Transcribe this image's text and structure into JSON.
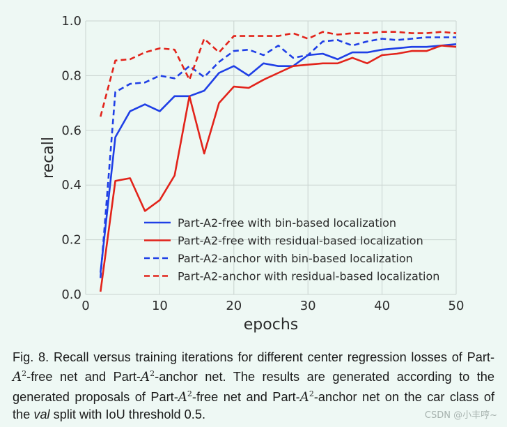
{
  "chart_data": {
    "type": "line",
    "xlabel": "epochs",
    "ylabel": "recall",
    "xlim": [
      0,
      50
    ],
    "ylim": [
      0.0,
      1.0
    ],
    "xticks": [
      0,
      10,
      20,
      30,
      40,
      50
    ],
    "yticks": [
      0.0,
      0.2,
      0.4,
      0.6,
      0.8,
      1.0
    ],
    "grid": true,
    "legend_position": "lower-right",
    "x": [
      2,
      4,
      6,
      8,
      10,
      12,
      14,
      16,
      18,
      20,
      22,
      24,
      26,
      28,
      30,
      32,
      34,
      36,
      38,
      40,
      42,
      44,
      46,
      48,
      50
    ],
    "series": [
      {
        "name": "Part-A2-free with bin-based localization",
        "color": "#1f3fe6",
        "style": "solid",
        "values": [
          0.08,
          0.575,
          0.67,
          0.695,
          0.67,
          0.725,
          0.725,
          0.745,
          0.81,
          0.835,
          0.8,
          0.845,
          0.835,
          0.835,
          0.875,
          0.88,
          0.86,
          0.885,
          0.885,
          0.895,
          0.9,
          0.905,
          0.905,
          0.91,
          0.915
        ]
      },
      {
        "name": "Part-A2-free with residual-based localization",
        "color": "#e2231a",
        "style": "solid",
        "values": [
          0.01,
          0.415,
          0.425,
          0.305,
          0.345,
          0.435,
          0.725,
          0.515,
          0.7,
          0.76,
          0.755,
          0.785,
          0.81,
          0.835,
          0.84,
          0.845,
          0.845,
          0.865,
          0.845,
          0.875,
          0.88,
          0.89,
          0.89,
          0.91,
          0.905
        ]
      },
      {
        "name": "Part-A2-anchor with bin-based localization",
        "color": "#1f3fe6",
        "style": "dashed",
        "values": [
          0.06,
          0.74,
          0.77,
          0.775,
          0.8,
          0.79,
          0.835,
          0.795,
          0.85,
          0.89,
          0.895,
          0.875,
          0.91,
          0.865,
          0.875,
          0.925,
          0.93,
          0.91,
          0.925,
          0.935,
          0.93,
          0.935,
          0.94,
          0.94,
          0.94
        ]
      },
      {
        "name": "Part-A2-anchor with residual-based localization",
        "color": "#e2231a",
        "style": "dashed",
        "values": [
          0.65,
          0.855,
          0.86,
          0.885,
          0.9,
          0.895,
          0.785,
          0.935,
          0.885,
          0.945,
          0.945,
          0.945,
          0.945,
          0.955,
          0.935,
          0.96,
          0.95,
          0.955,
          0.955,
          0.96,
          0.96,
          0.955,
          0.955,
          0.96,
          0.955
        ]
      }
    ]
  },
  "caption": {
    "p1": "Fig. 8. Recall versus training iterations for different center regression losses of Part-",
    "m1": "A",
    "m1sup": "2",
    "p2": "-free net and Part-",
    "m2": "A",
    "m2sup": "2",
    "p3": "-anchor net. The results are generated according to the generated proposals of Part-",
    "m3": "A",
    "m3sup": "2",
    "p4": "-free net and Part-",
    "m4": "A",
    "m4sup": "2",
    "p5": "-anchor net on the car class of the ",
    "val": "val",
    "p6": " split with IoU threshold 0.5."
  },
  "watermark": "CSDN @小丰哼~"
}
